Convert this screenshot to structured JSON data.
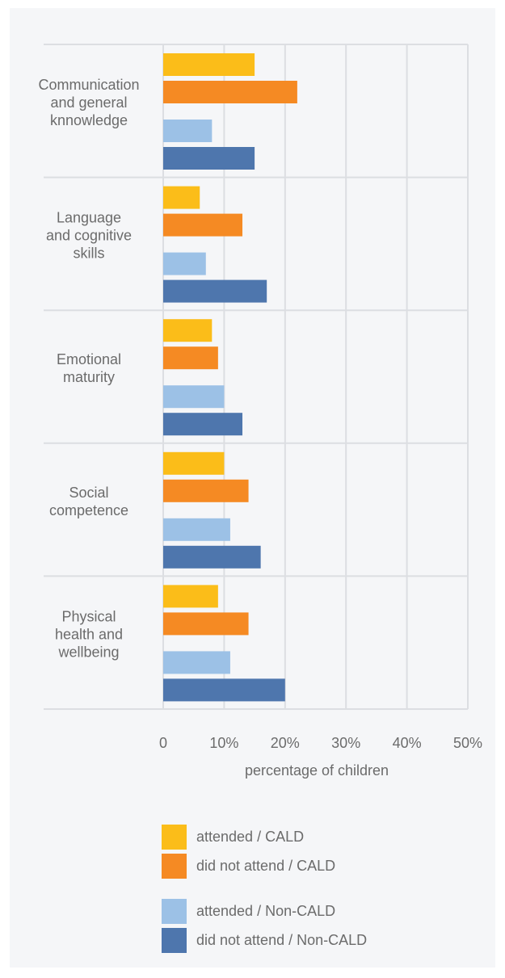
{
  "chart_data": {
    "type": "bar",
    "orientation": "horizontal",
    "categories": [
      [
        "Communication",
        "and general",
        "knnowledge"
      ],
      [
        "Language",
        "and cognitive",
        "skills"
      ],
      [
        "Emotional",
        "maturity"
      ],
      [
        "Social",
        "competence"
      ],
      [
        "Physical",
        "health and",
        "wellbeing"
      ]
    ],
    "series": [
      {
        "name": "attended / CALD",
        "color": "#fbbd19",
        "values": [
          15,
          6,
          8,
          10,
          9
        ]
      },
      {
        "name": "did not attend / CALD",
        "color": "#f58a23",
        "values": [
          22,
          13,
          9,
          14,
          14
        ]
      },
      {
        "name": "attended / Non-CALD",
        "color": "#9cc1e6",
        "values": [
          8,
          7,
          10,
          11,
          11
        ]
      },
      {
        "name": "did not attend / Non-CALD",
        "color": "#4e76ad",
        "values": [
          15,
          17,
          13,
          16,
          20
        ]
      }
    ],
    "xlim": [
      0,
      50
    ],
    "xticks": [
      "0",
      "10%",
      "20%",
      "30%",
      "40%",
      "50%"
    ],
    "xlabel": "percentage of children",
    "grid": true,
    "legend_position": "bottom"
  }
}
